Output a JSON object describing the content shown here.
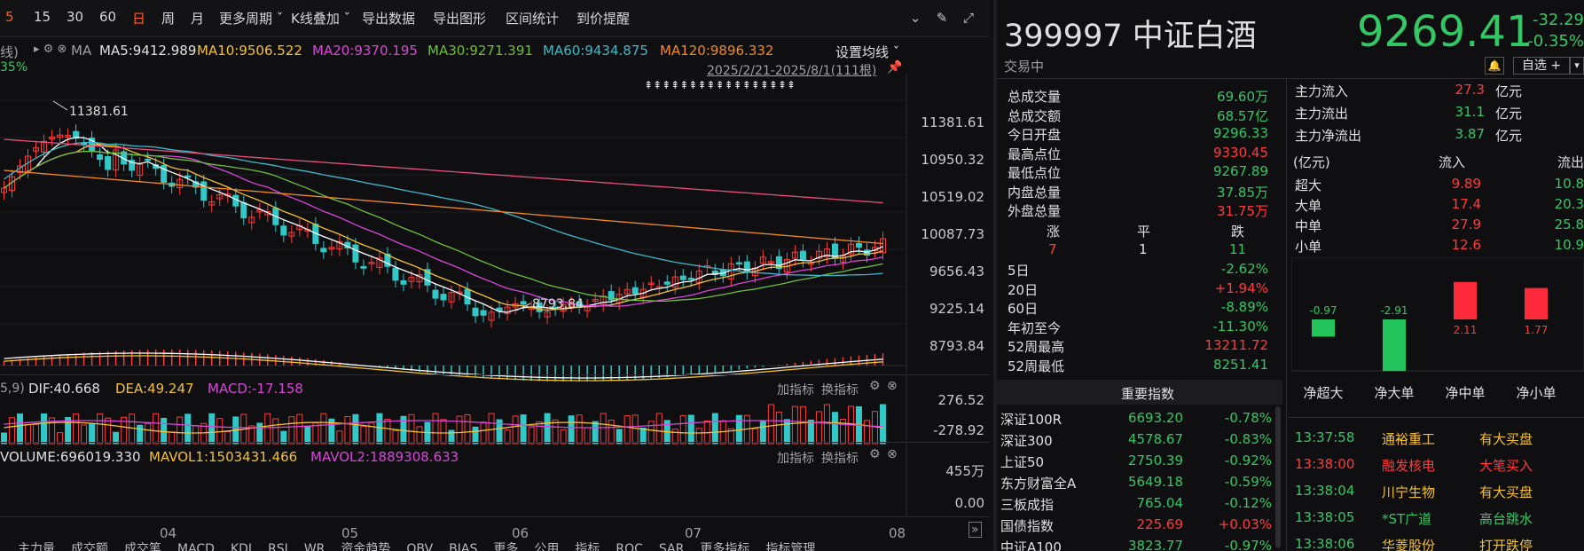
{
  "toolbar": {
    "periods": [
      "5",
      "15",
      "30",
      "60",
      "日",
      "周",
      "月"
    ],
    "selected_period": "日",
    "more_period": "更多周期",
    "kline_overlay": "K线叠加",
    "export_data": "导出数据",
    "export_chart": "导出图形",
    "range_stats": "区间统计",
    "price_alert": "到价提醒"
  },
  "ma_bar": {
    "prefix": "线)",
    "ma_label": "MA",
    "ma5": "MA5:9412.989",
    "ma10": "MA10:9506.522",
    "ma20": "MA20:9370.195",
    "ma30": "MA30:9271.391",
    "ma60": "MA60:9434.875",
    "ma120": "MA120:9896.332",
    "settings": "设置均线",
    "partial_pct": "35%",
    "date_range": "2025/2/21-2025/8/1(111根)"
  },
  "price_axis": [
    "11381.61",
    "10950.32",
    "10519.02",
    "10087.73",
    "9656.43",
    "9225.14",
    "8793.84"
  ],
  "annotations": {
    "high": "11381.61",
    "low": "8793.84"
  },
  "macd": {
    "params": "5,9)",
    "dif": "DIF:40.668",
    "dea": "DEA:49.247",
    "macd": "MACD:-17.158",
    "add_indicator": "加指标",
    "switch_indicator": "换指标",
    "axis": [
      "276.52",
      "-278.92"
    ]
  },
  "volume": {
    "vol": "VOLUME:696019.330",
    "mavol1": "MAVOL1:1503431.466",
    "mavol2": "MAVOL2:1889308.633",
    "add_indicator": "加指标",
    "switch_indicator": "换指标",
    "axis": [
      "455万",
      "0.00"
    ]
  },
  "x_axis": [
    "04",
    "05",
    "06",
    "07",
    "08"
  ],
  "bottom_tabs": [
    "主力量",
    "成交额",
    "成交笔",
    "MACD",
    "KDJ",
    "RSI",
    "WR",
    "资金趋势",
    "OBV",
    "BIAS",
    "更多",
    "公用",
    "指标",
    "ROC",
    "SAR",
    "更多指标",
    "指标管理"
  ],
  "stock": {
    "code_name": "399997 中证白酒",
    "status": "交易中",
    "price": "9269.41",
    "change": "-32.29",
    "change_pct": "-0.35%",
    "watchlist": "自选 +"
  },
  "quote": [
    {
      "label": "总成交量",
      "value": "69.60万",
      "color": "green"
    },
    {
      "label": "总成交额",
      "value": "68.57亿",
      "color": "green"
    },
    {
      "label": "今日开盘",
      "value": "9296.33",
      "color": "green"
    },
    {
      "label": "最高点位",
      "value": "9330.45",
      "color": "red"
    },
    {
      "label": "最低点位",
      "value": "9267.89",
      "color": "green"
    },
    {
      "label": "内盘总量",
      "value": "37.85万",
      "color": "green"
    },
    {
      "label": "外盘总量",
      "value": "31.75万",
      "color": "red"
    }
  ],
  "breadth": {
    "up_label": "涨",
    "flat_label": "平",
    "down_label": "跌",
    "up": "7",
    "flat": "1",
    "down": "11"
  },
  "perf": [
    {
      "label": "5日",
      "value": "-2.62%",
      "color": "green"
    },
    {
      "label": "20日",
      "value": "+1.94%",
      "color": "red"
    },
    {
      "label": "60日",
      "value": "-8.89%",
      "color": "green"
    },
    {
      "label": "年初至今",
      "value": "-11.30%",
      "color": "green"
    },
    {
      "label": "52周最高",
      "value": "13211.72",
      "color": "red"
    },
    {
      "label": "52周最低",
      "value": "8251.41",
      "color": "green"
    }
  ],
  "indices": {
    "title": "重要指数",
    "rows": [
      {
        "name": "深证100R",
        "value": "6693.20",
        "pct": "-0.78%",
        "color": "green"
      },
      {
        "name": "深证300",
        "value": "4578.67",
        "pct": "-0.83%",
        "color": "green"
      },
      {
        "name": "上证50",
        "value": "2750.39",
        "pct": "-0.92%",
        "color": "green"
      },
      {
        "name": "东方财富全A",
        "value": "5649.18",
        "pct": "-0.59%",
        "color": "green"
      },
      {
        "name": "三板成指",
        "value": "765.04",
        "pct": "-0.12%",
        "color": "green"
      },
      {
        "name": "国债指数",
        "value": "225.69",
        "pct": "+0.03%",
        "color": "red"
      },
      {
        "name": "中证A100",
        "value": "3823.77",
        "pct": "-0.97%",
        "color": "green"
      }
    ]
  },
  "flow": {
    "rows": [
      {
        "label": "主力流入",
        "value": "27.3",
        "unit": "亿元",
        "color": "red"
      },
      {
        "label": "主力流出",
        "value": "31.1",
        "unit": "亿元",
        "color": "green"
      },
      {
        "label": "主力净流出",
        "value": "3.87",
        "unit": "亿元",
        "color": "green"
      }
    ],
    "table_header": {
      "unit": "(亿元)",
      "in": "流入",
      "out": "流出"
    },
    "table": [
      {
        "label": "超大",
        "in": "9.89",
        "out": "10.8"
      },
      {
        "label": "大单",
        "in": "17.4",
        "out": "20.3"
      },
      {
        "label": "中单",
        "in": "27.9",
        "out": "25.8"
      },
      {
        "label": "小单",
        "in": "12.6",
        "out": "10.9"
      }
    ],
    "bars": [
      {
        "label": "净超大",
        "value": -0.97,
        "text": "-0.97"
      },
      {
        "label": "净大单",
        "value": -2.91,
        "text": "-2.91"
      },
      {
        "label": "净中单",
        "value": 2.11,
        "text": "2.11"
      },
      {
        "label": "净小单",
        "value": 1.77,
        "text": "1.77"
      }
    ]
  },
  "ticks": [
    {
      "time": "13:37:58",
      "name": "通裕重工",
      "event": "有大买盘"
    },
    {
      "time": "13:38:00",
      "name": "融发核电",
      "event": "大笔买入"
    },
    {
      "time": "13:38:04",
      "name": "川宁生物",
      "event": "有大买盘"
    },
    {
      "time": "13:38:05",
      "name": "*ST广道",
      "event": "高台跳水"
    },
    {
      "time": "13:38:06",
      "name": "华菱股份",
      "event": "打开跌停"
    }
  ],
  "colors": {
    "up": "#ff3b3b",
    "down": "#32c8c8",
    "ma5": "#ffffff",
    "ma10": "#f2c230",
    "ma20": "#d846d8",
    "ma30": "#6fbf3a",
    "ma60": "#3fb8c8",
    "ma120": "#f08a24",
    "pink": "#e8507a"
  }
}
